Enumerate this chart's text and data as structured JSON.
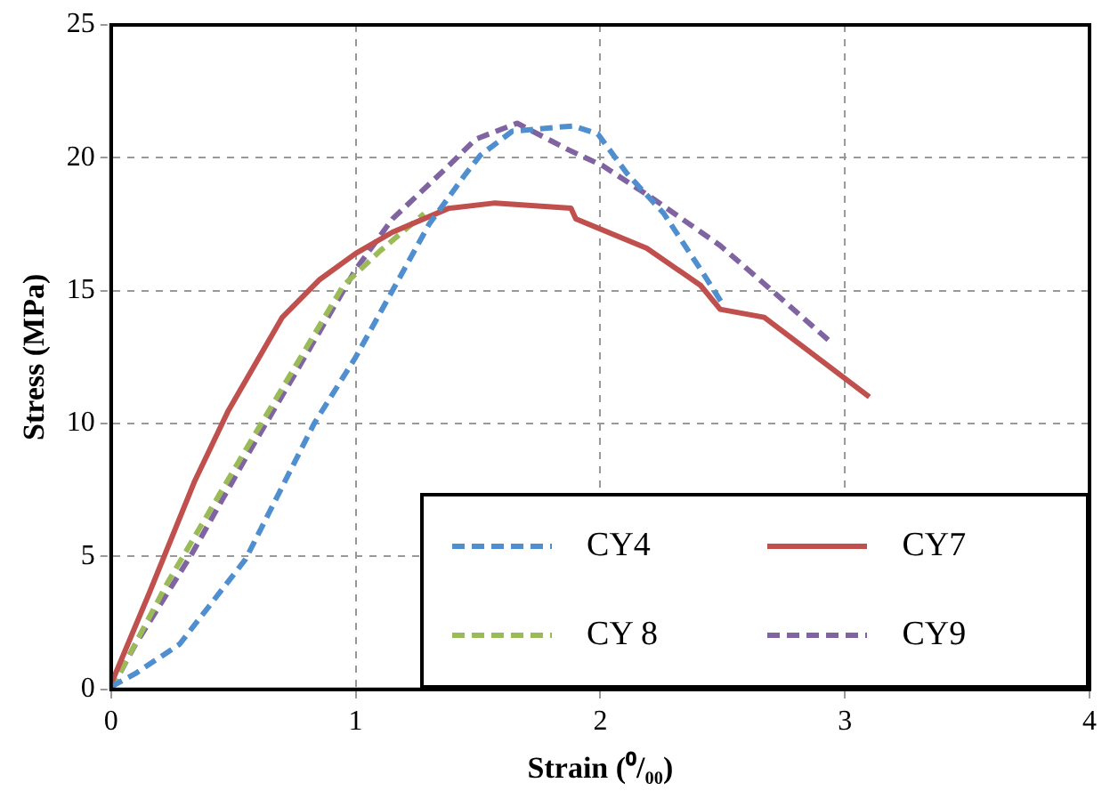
{
  "chart_data": {
    "type": "line",
    "xlabel": "Strain (⁰/₀₀)",
    "ylabel": "Stress (MPa)",
    "xlim": [
      0,
      4
    ],
    "xticks": [
      0,
      1,
      2,
      3,
      4
    ],
    "ylim": [
      0,
      25
    ],
    "yticks": [
      0,
      5,
      10,
      15,
      20,
      25
    ],
    "grid": true,
    "legend": "bottom right",
    "marker": "none",
    "series": [
      {
        "name": "CY4",
        "color": "#4f8fd0",
        "line_style": "dashed",
        "x": [
          0,
          0.1,
          0.28,
          0.55,
          0.83,
          1.0,
          1.15,
          1.3,
          1.45,
          1.51,
          1.64,
          1.89,
          1.99,
          2.11,
          2.26,
          2.41,
          2.5
        ],
        "values": [
          0.1,
          0.6,
          1.7,
          4.9,
          10.0,
          12.5,
          15.0,
          17.5,
          19.4,
          20.1,
          21.0,
          21.2,
          20.9,
          19.4,
          17.9,
          15.8,
          14.5
        ]
      },
      {
        "name": "CY7",
        "color": "#c0504d",
        "line_style": "solid",
        "x": [
          0,
          0.155,
          0.34,
          0.48,
          0.7,
          0.85,
          1.0,
          1.15,
          1.38,
          1.57,
          1.88,
          1.9,
          2.19,
          2.41,
          2.49,
          2.67,
          3.1
        ],
        "values": [
          0.2,
          3.6,
          7.8,
          10.5,
          14.0,
          15.4,
          16.4,
          17.2,
          18.1,
          18.3,
          18.1,
          17.7,
          16.6,
          15.2,
          14.3,
          14.0,
          11.0
        ]
      },
      {
        "name": "CY 8",
        "color": "#9bbb59",
        "line_style": "dashed",
        "x": [
          0,
          0.23,
          0.53,
          0.73,
          0.95,
          1.1,
          1.28
        ],
        "values": [
          0,
          4.0,
          8.7,
          11.8,
          15.2,
          16.5,
          17.9
        ]
      },
      {
        "name": "CY9",
        "color": "#8064a2",
        "line_style": "dashed",
        "x": [
          0,
          0.1,
          0.33,
          0.55,
          0.76,
          1.0,
          1.15,
          1.38,
          1.49,
          1.66,
          1.87,
          2.01,
          2.21,
          2.49,
          2.74,
          2.95
        ],
        "values": [
          0,
          1.7,
          5.1,
          8.7,
          12.0,
          15.8,
          17.7,
          19.7,
          20.7,
          21.3,
          20.3,
          19.7,
          18.5,
          16.7,
          14.7,
          13.0
        ]
      }
    ]
  }
}
